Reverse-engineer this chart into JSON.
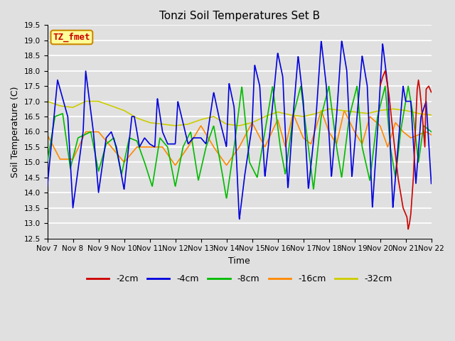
{
  "title": "Tonzi Soil Temperatures Set B",
  "xlabel": "Time",
  "ylabel": "Soil Temperature (C)",
  "ylim": [
    12.5,
    19.5
  ],
  "xlim": [
    0,
    15
  ],
  "legend_label": "TZ_fmet",
  "series_labels": [
    "-2cm",
    "-4cm",
    "-8cm",
    "-16cm",
    "-32cm"
  ],
  "series_colors": [
    "#cc0000",
    "#0000dd",
    "#00bb00",
    "#ff8800",
    "#cccc00"
  ],
  "xtick_labels": [
    "Nov 7",
    "Nov 8",
    "Nov 9",
    "Nov 10",
    "Nov 11",
    "Nov 12",
    "Nov 13",
    "Nov 14",
    "Nov 15",
    "Nov 16",
    "Nov 17",
    "Nov 18",
    "Nov 19",
    "Nov 20",
    "Nov 21",
    "Nov 22"
  ],
  "ytick_labels": [
    "12.5",
    "13.0",
    "13.5",
    "14.0",
    "14.5",
    "15.0",
    "15.5",
    "16.0",
    "16.5",
    "17.0",
    "17.5",
    "18.0",
    "18.5",
    "19.0",
    "19.5"
  ],
  "ytick_vals": [
    12.5,
    13.0,
    13.5,
    14.0,
    14.5,
    15.0,
    15.5,
    16.0,
    16.5,
    17.0,
    17.5,
    18.0,
    18.5,
    19.0,
    19.5
  ],
  "background_color": "#e0e0e0",
  "grid_color": "#ffffff",
  "legend_label_color": "#cc0000",
  "legend_label_bg": "#ffff99",
  "legend_label_edge": "#cc8800",
  "linewidth": 1.2,
  "title_fontsize": 11,
  "axis_fontsize": 9,
  "tick_fontsize": 7.5
}
